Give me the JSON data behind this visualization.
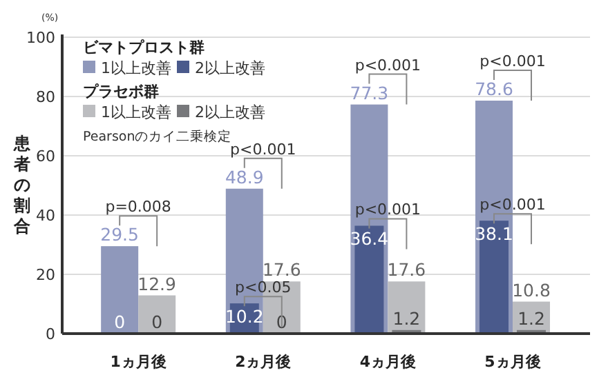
{
  "chart_data": {
    "type": "bar",
    "ylabel": "患者の割合",
    "categories": [
      "1ヵ月後",
      "2ヵ月後",
      "4ヵ月後",
      "5ヵ月後"
    ],
    "series": [
      {
        "name": "1以上改善",
        "color": "#8f98bb",
        "values": [
          29.5,
          48.9,
          77.3,
          78.6
        ]
      },
      {
        "name": "2以上改善",
        "color": "#4a5a8c",
        "values": [
          0,
          10.2,
          36.4,
          38.1
        ]
      },
      {
        "name": "1以上改善",
        "color": "#bcbdc0",
        "values": [
          12.9,
          17.6,
          17.6,
          10.8
        ]
      },
      {
        "name": "2以上改善",
        "color": "#77787b",
        "values": [
          0,
          0,
          1.2,
          1.2
        ]
      }
    ],
    "ylim": [
      0,
      100
    ],
    "yticks": [
      0,
      20,
      40,
      60,
      80,
      100
    ],
    "grid": "y",
    "legend": "top left",
    "data_labels": true,
    "annotations": [
      "ビマトプロスト群",
      "プラセボ群",
      "Pearsonのカイ二乗検定",
      "(%)",
      {
        "text": "p=0.008",
        "x": "1ヵ月後",
        "y": 29.5
      },
      {
        "text": "p<0.001",
        "x": "2ヵ月後",
        "y": 48.9
      },
      {
        "text": "p<0.05",
        "x": "2ヵ月後",
        "y": 10.2
      },
      {
        "text": "p<0.001",
        "x": "4ヵ月後",
        "y": 77.3
      },
      {
        "text": "p<0.001",
        "x": "4ヵ月後",
        "y": 36.4
      },
      {
        "text": "p<0.001",
        "x": "5ヵ月後",
        "y": 78.6
      },
      {
        "text": "p<0.001",
        "x": "5ヵ月後",
        "y": 38.1
      }
    ]
  }
}
